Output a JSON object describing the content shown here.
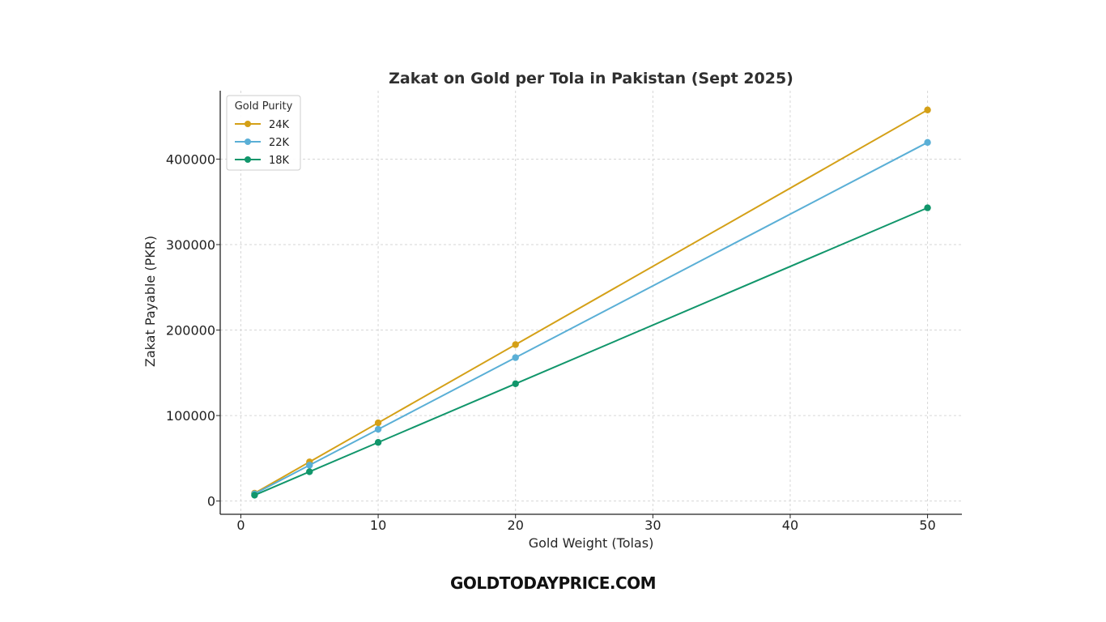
{
  "chart_data": {
    "type": "line",
    "title": "Zakat on Gold per Tola in Pakistan (Sept 2025)",
    "xlabel": "Gold Weight (Tolas)",
    "ylabel": "Zakat Payable (PKR)",
    "x": [
      1,
      5,
      10,
      20,
      50
    ],
    "xlim": [
      -1.5,
      52.5
    ],
    "ylim": [
      -15500,
      480000
    ],
    "xticks": [
      0,
      10,
      20,
      30,
      40,
      50
    ],
    "yticks": [
      0,
      100000,
      200000,
      300000,
      400000
    ],
    "grid": true,
    "legend": {
      "title": "Gold Purity",
      "placement": "top-left"
    },
    "series": [
      {
        "name": "24K",
        "color": "#d4a017",
        "values": [
          9150,
          45750,
          91500,
          183000,
          457500
        ]
      },
      {
        "name": "22K",
        "color": "#5aafd6",
        "values": [
          8390,
          41950,
          83900,
          167800,
          419500
        ]
      },
      {
        "name": "18K",
        "color": "#11966b",
        "values": [
          6860,
          34300,
          68600,
          137200,
          343000
        ]
      }
    ]
  },
  "watermark": "GOLDTODAYPRICE.COM"
}
